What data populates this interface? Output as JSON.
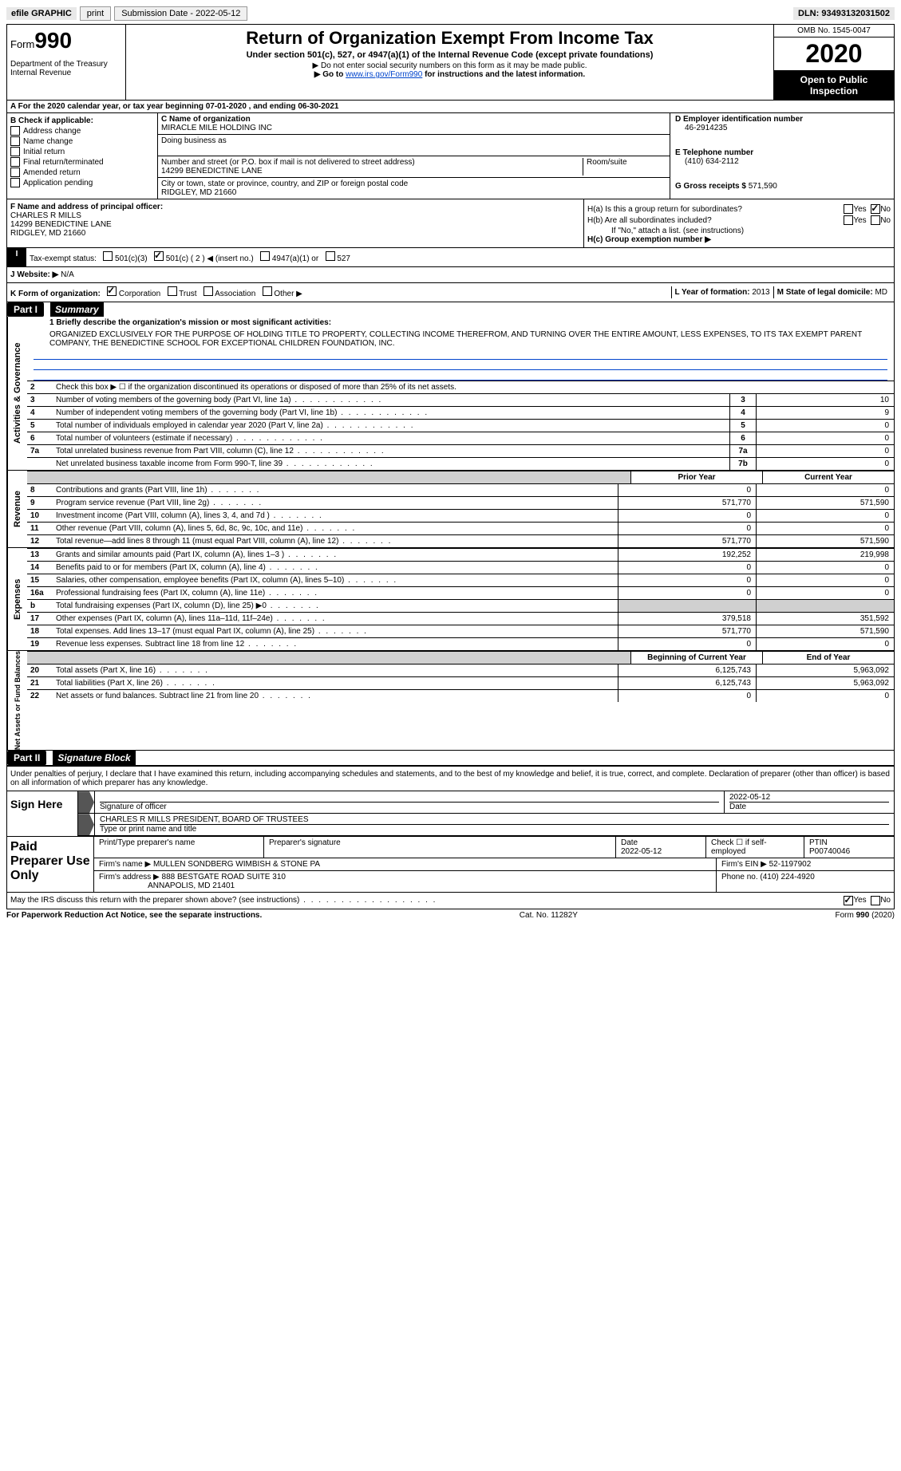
{
  "toolbar": {
    "efile_label": "efile GRAPHIC",
    "print_label": "print",
    "submission_label": "Submission Date - 2022-05-12",
    "dln": "DLN: 93493132031502"
  },
  "header": {
    "form_prefix": "Form",
    "form_number": "990",
    "dept": "Department of the Treasury Internal Revenue ",
    "title": "Return of Organization Exempt From Income Tax",
    "subtitle": "Under section 501(c), 527, or 4947(a)(1) of the Internal Revenue Code (except private foundations)",
    "note1": "▶ Do not enter social security numbers on this form as it may be made public.",
    "note2_pre": "▶ Go to ",
    "note2_link": "www.irs.gov/Form990",
    "note2_post": " for instructions and the latest information.",
    "omb": "OMB No. 1545-0047",
    "year": "2020",
    "inspection": "Open to Public Inspection"
  },
  "period": "A For the 2020 calendar year, or tax year beginning 07-01-2020    , and ending 06-30-2021",
  "sectionB": {
    "label": "B Check if applicable:",
    "items": [
      "Address change",
      "Name change",
      "Initial return",
      "Final return/terminated",
      "Amended return",
      "Application pending"
    ]
  },
  "sectionC": {
    "name_label": "C Name of organization",
    "name": "MIRACLE MILE HOLDING INC",
    "dba_label": "Doing business as",
    "addr_label": "Number and street (or P.O. box if mail is not delivered to street address)",
    "room_label": "Room/suite",
    "addr": "14299 BENEDICTINE LANE",
    "city_label": "City or town, state or province, country, and ZIP or foreign postal code",
    "city": "RIDGLEY, MD  21660"
  },
  "sectionD": {
    "ein_label": "D Employer identification number",
    "ein": "46-2914235",
    "phone_label": "E Telephone number",
    "phone": "(410) 634-2112",
    "gross_label": "G Gross receipts $",
    "gross": "571,590"
  },
  "sectionF": {
    "label": "F  Name and address of principal officer:",
    "name": "CHARLES R MILLS",
    "addr1": "14299 BENEDICTINE LANE",
    "addr2": "RIDGLEY, MD  21660"
  },
  "sectionH": {
    "ha_label": "H(a)  Is this a group return for subordinates?",
    "hb_label": "H(b)  Are all subordinates included?",
    "hb_note": "If \"No,\" attach a list. (see instructions)",
    "hc_label": "H(c)  Group exemption number ▶",
    "yes": "Yes",
    "no": "No"
  },
  "sectionI": {
    "label": "Tax-exempt status:",
    "opt1": "501(c)(3)",
    "opt2": "501(c) ( 2 ) ◀ (insert no.)",
    "opt3": "4947(a)(1) or",
    "opt4": "527"
  },
  "sectionJ": {
    "label": "J   Website: ▶",
    "value": "N/A"
  },
  "sectionK": {
    "label": "K Form of organization:",
    "opts": [
      "Corporation",
      "Trust",
      "Association",
      "Other ▶"
    ]
  },
  "sectionL": {
    "l_label": "L Year of formation:",
    "l_value": "2013",
    "m_label": "M State of legal domicile:",
    "m_value": "MD"
  },
  "partI": {
    "header": "Part I",
    "title": "Summary",
    "line1_label": "1  Briefly describe the organization's mission or most significant activities:",
    "line1_text": "ORGANIZED EXCLUSIVELY FOR THE PURPOSE OF HOLDING TITLE TO PROPERTY, COLLECTING INCOME THEREFROM, AND TURNING OVER THE ENTIRE AMOUNT, LESS EXPENSES, TO ITS TAX EXEMPT PARENT COMPANY, THE BENEDICTINE SCHOOL FOR EXCEPTIONAL CHILDREN FOUNDATION, INC.",
    "vert1": "Activities & Governance",
    "vert2": "Revenue",
    "vert3": "Expenses",
    "vert4": "Net Assets or Fund Balances",
    "lines_gov": [
      {
        "num": "2",
        "text": "Check this box ▶ ☐ if the organization discontinued its operations or disposed of more than 25% of its net assets.",
        "box": "",
        "val": ""
      },
      {
        "num": "3",
        "text": "Number of voting members of the governing body (Part VI, line 1a)",
        "box": "3",
        "val": "10"
      },
      {
        "num": "4",
        "text": "Number of independent voting members of the governing body (Part VI, line 1b)",
        "box": "4",
        "val": "9"
      },
      {
        "num": "5",
        "text": "Total number of individuals employed in calendar year 2020 (Part V, line 2a)",
        "box": "5",
        "val": "0"
      },
      {
        "num": "6",
        "text": "Total number of volunteers (estimate if necessary)",
        "box": "6",
        "val": "0"
      },
      {
        "num": "7a",
        "text": "Total unrelated business revenue from Part VIII, column (C), line 12",
        "box": "7a",
        "val": "0"
      },
      {
        "num": "",
        "text": "Net unrelated business taxable income from Form 990-T, line 39",
        "box": "7b",
        "val": "0"
      }
    ],
    "col_prior": "Prior Year",
    "col_current": "Current Year",
    "lines_rev": [
      {
        "num": "8",
        "text": "Contributions and grants (Part VIII, line 1h)",
        "p": "0",
        "c": "0"
      },
      {
        "num": "9",
        "text": "Program service revenue (Part VIII, line 2g)",
        "p": "571,770",
        "c": "571,590"
      },
      {
        "num": "10",
        "text": "Investment income (Part VIII, column (A), lines 3, 4, and 7d )",
        "p": "0",
        "c": "0"
      },
      {
        "num": "11",
        "text": "Other revenue (Part VIII, column (A), lines 5, 6d, 8c, 9c, 10c, and 11e)",
        "p": "0",
        "c": "0"
      },
      {
        "num": "12",
        "text": "Total revenue—add lines 8 through 11 (must equal Part VIII, column (A), line 12)",
        "p": "571,770",
        "c": "571,590"
      }
    ],
    "lines_exp": [
      {
        "num": "13",
        "text": "Grants and similar amounts paid (Part IX, column (A), lines 1–3 )",
        "p": "192,252",
        "c": "219,998"
      },
      {
        "num": "14",
        "text": "Benefits paid to or for members (Part IX, column (A), line 4)",
        "p": "0",
        "c": "0"
      },
      {
        "num": "15",
        "text": "Salaries, other compensation, employee benefits (Part IX, column (A), lines 5–10)",
        "p": "0",
        "c": "0"
      },
      {
        "num": "16a",
        "text": "Professional fundraising fees (Part IX, column (A), line 11e)",
        "p": "0",
        "c": "0"
      },
      {
        "num": "b",
        "text": "Total fundraising expenses (Part IX, column (D), line 25) ▶0",
        "p": "",
        "c": ""
      },
      {
        "num": "17",
        "text": "Other expenses (Part IX, column (A), lines 11a–11d, 11f–24e)",
        "p": "379,518",
        "c": "351,592"
      },
      {
        "num": "18",
        "text": "Total expenses. Add lines 13–17 (must equal Part IX, column (A), line 25)",
        "p": "571,770",
        "c": "571,590"
      },
      {
        "num": "19",
        "text": "Revenue less expenses. Subtract line 18 from line 12",
        "p": "0",
        "c": "0"
      }
    ],
    "col_begin": "Beginning of Current Year",
    "col_end": "End of Year",
    "lines_net": [
      {
        "num": "20",
        "text": "Total assets (Part X, line 16)",
        "p": "6,125,743",
        "c": "5,963,092"
      },
      {
        "num": "21",
        "text": "Total liabilities (Part X, line 26)",
        "p": "6,125,743",
        "c": "5,963,092"
      },
      {
        "num": "22",
        "text": "Net assets or fund balances. Subtract line 21 from line 20",
        "p": "0",
        "c": "0"
      }
    ]
  },
  "partII": {
    "header": "Part II",
    "title": "Signature Block",
    "declare": "Under penalties of perjury, I declare that I have examined this return, including accompanying schedules and statements, and to the best of my knowledge and belief, it is true, correct, and complete. Declaration of preparer (other than officer) is based on all information of which preparer has any knowledge.",
    "sign_here": "Sign Here",
    "sig_officer": "Signature of officer",
    "sig_date": "2022-05-12",
    "date_label": "Date",
    "officer_name": "CHARLES R MILLS  PRESIDENT, BOARD OF TRUSTEES",
    "type_label": "Type or print name and title",
    "paid_prep": "Paid Preparer Use Only",
    "prep_name_label": "Print/Type preparer's name",
    "prep_sig_label": "Preparer's signature",
    "prep_date_label": "Date",
    "prep_date": "2022-05-12",
    "check_self": "Check ☐ if self-employed",
    "ptin_label": "PTIN",
    "ptin": "P00740046",
    "firm_name_label": "Firm's name    ▶",
    "firm_name": "MULLEN SONDBERG WIMBISH & STONE PA",
    "firm_ein_label": "Firm's EIN ▶",
    "firm_ein": "52-1197902",
    "firm_addr_label": "Firm's address ▶",
    "firm_addr1": "888 BESTGATE ROAD SUITE 310",
    "firm_addr2": "ANNAPOLIS, MD  21401",
    "firm_phone_label": "Phone no.",
    "firm_phone": "(410) 224-4920",
    "discuss": "May the IRS discuss this return with the preparer shown above? (see instructions)"
  },
  "footer": {
    "paperwork": "For Paperwork Reduction Act Notice, see the separate instructions.",
    "cat": "Cat. No. 11282Y",
    "form": "Form 990 (2020)"
  }
}
